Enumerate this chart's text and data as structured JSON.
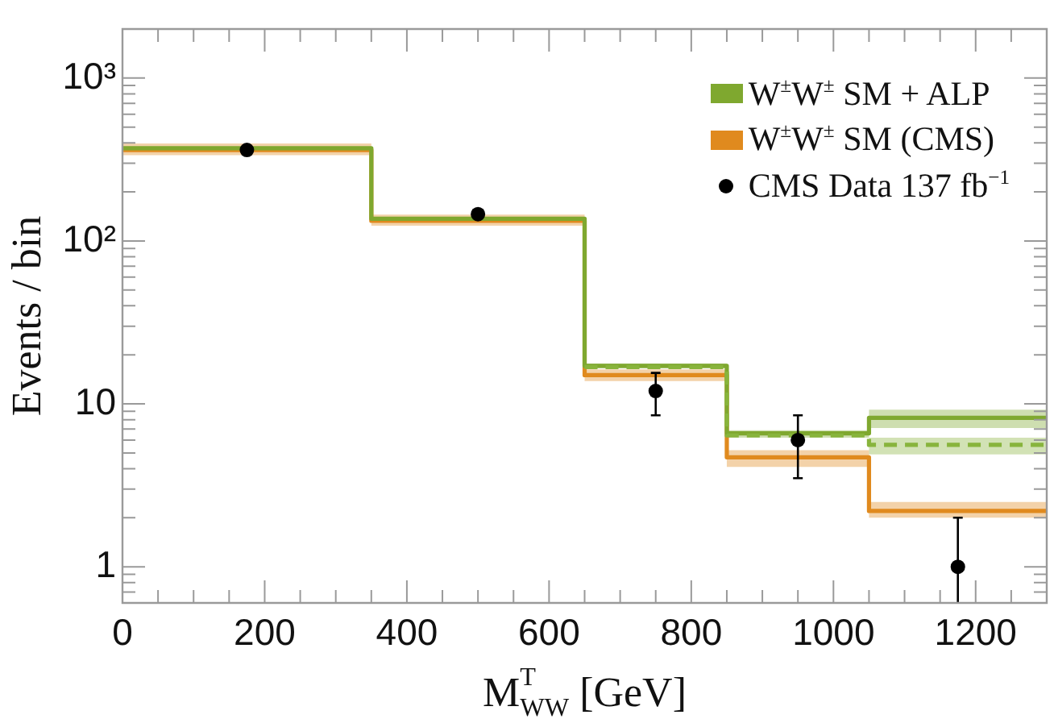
{
  "chart_data": {
    "type": "step",
    "xlabel": "M$^{T}$$_{WW}$ [GeV]",
    "ylabel": "Events / bin",
    "x": [
      0,
      350,
      650,
      850,
      1050,
      1300
    ],
    "series": [
      {
        "name": "W$^{±}$W$^{±}$ SM + ALP",
        "color": "#7fa82f",
        "values": [
          371,
          137,
          17.1,
          6.6,
          8.2,
          8.2
        ],
        "lower": [
          null,
          null,
          16.5,
          6.2,
          7.1,
          7.1
        ],
        "upper": [
          null,
          null,
          17.7,
          6.9,
          9.2,
          9.2
        ]
      },
      {
        "name": "W$^{±}$W$^{±}$ SM (CMS)",
        "color": "#e08a1e",
        "values": [
          362,
          133,
          15,
          4.7,
          2.2,
          2.2
        ],
        "lower": [
          336,
          124,
          13.8,
          4.1,
          2,
          2
        ],
        "upper": [
          397,
          145,
          16.3,
          5.2,
          2.5,
          2.5
        ]
      },
      {
        "color": "#88b43c",
        "line_style": "dashed",
        "values": [
          null,
          null,
          16.8,
          6.4,
          5.6,
          5.6
        ],
        "lower": [
          null,
          null,
          null,
          null,
          4.9,
          4.9
        ],
        "upper": [
          null,
          null,
          null,
          null,
          6.2,
          6.2
        ]
      },
      {
        "type": "scatter",
        "name": "CMS Data 137 fb$^{−1}$",
        "color": "#000000",
        "marker": "circle",
        "x": [
          175,
          500,
          750,
          950,
          1175
        ],
        "values": [
          362,
          146,
          12,
          6,
          1
        ],
        "errors": [
          null,
          null,
          3.5,
          2.5,
          [
            0.6,
            2
          ]
        ]
      }
    ],
    "xlim": [
      0,
      1300
    ],
    "xticks": [
      0,
      {
        "value": 50,
        "label": null
      },
      {
        "value": 100,
        "label": null
      },
      {
        "value": 150,
        "label": null
      },
      200,
      {
        "value": 250,
        "label": null
      },
      {
        "value": 300,
        "label": null
      },
      {
        "value": 350,
        "label": null
      },
      400,
      {
        "value": 450,
        "label": null
      },
      {
        "value": 500,
        "label": null
      },
      {
        "value": 550,
        "label": null
      },
      600,
      {
        "value": 650,
        "label": null
      },
      {
        "value": 700,
        "label": null
      },
      {
        "value": 750,
        "label": null
      },
      800,
      {
        "value": 850,
        "label": null
      },
      {
        "value": 900,
        "label": null
      },
      {
        "value": 950,
        "label": null
      },
      1000,
      {
        "value": 1050,
        "label": null
      },
      {
        "value": 1100,
        "label": null
      },
      {
        "value": 1150,
        "label": null
      },
      1200,
      {
        "value": 1250,
        "label": null
      }
    ],
    "ylim": [
      0.6,
      2000
    ],
    "yticks": [
      {
        "value": 0.7,
        "label": null
      },
      {
        "value": 0.8,
        "label": null
      },
      {
        "value": 0.9,
        "label": null
      },
      1,
      {
        "value": 2,
        "label": null
      },
      {
        "value": 3,
        "label": null
      },
      {
        "value": 4,
        "label": null
      },
      {
        "value": 5,
        "label": null
      },
      {
        "value": 6,
        "label": null
      },
      {
        "value": 7,
        "label": null
      },
      {
        "value": 8,
        "label": null
      },
      {
        "value": 9,
        "label": null
      },
      10,
      {
        "value": 20,
        "label": null
      },
      {
        "value": 30,
        "label": null
      },
      {
        "value": 40,
        "label": null
      },
      {
        "value": 50,
        "label": null
      },
      {
        "value": 60,
        "label": null
      },
      {
        "value": 70,
        "label": null
      },
      {
        "value": 80,
        "label": null
      },
      {
        "value": 90,
        "label": null
      },
      {
        "value": 100,
        "label": "10²"
      },
      {
        "value": 200,
        "label": null
      },
      {
        "value": 300,
        "label": null
      },
      {
        "value": 400,
        "label": null
      },
      {
        "value": 500,
        "label": null
      },
      {
        "value": 600,
        "label": null
      },
      {
        "value": 700,
        "label": null
      },
      {
        "value": 800,
        "label": null
      },
      {
        "value": 900,
        "label": null
      },
      {
        "value": 1000,
        "label": "10³"
      }
    ],
    "log": true,
    "legend": "top right"
  }
}
